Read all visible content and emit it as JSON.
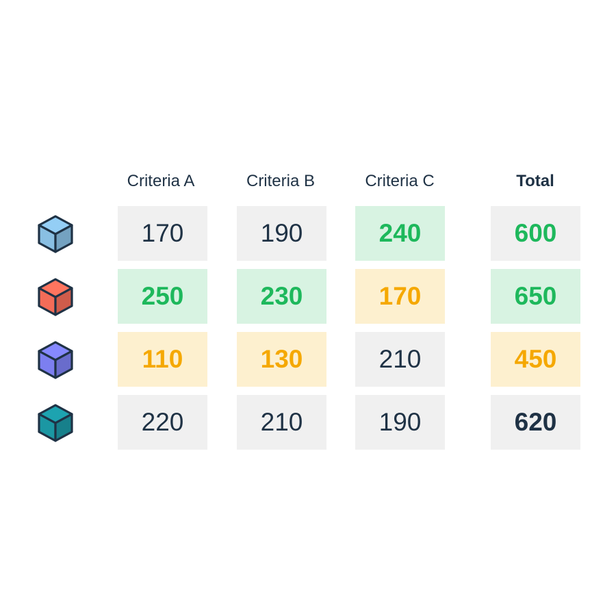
{
  "columns": [
    "Criteria A",
    "Criteria B",
    "Criteria C",
    "Total"
  ],
  "rows": [
    {
      "icon": "light-blue-cube-icon",
      "color": "#89bfe3",
      "cells": [
        {
          "value": "170",
          "status": "neutral"
        },
        {
          "value": "190",
          "status": "neutral"
        },
        {
          "value": "240",
          "status": "good"
        }
      ],
      "total": {
        "value": "600",
        "status": "good-plain"
      }
    },
    {
      "icon": "red-cube-icon",
      "color": "#f36c58",
      "cells": [
        {
          "value": "250",
          "status": "good"
        },
        {
          "value": "230",
          "status": "good"
        },
        {
          "value": "170",
          "status": "warn"
        }
      ],
      "total": {
        "value": "650",
        "status": "good"
      }
    },
    {
      "icon": "purple-cube-icon",
      "color": "#7c7ff0",
      "cells": [
        {
          "value": "110",
          "status": "warn"
        },
        {
          "value": "130",
          "status": "warn"
        },
        {
          "value": "210",
          "status": "neutral"
        }
      ],
      "total": {
        "value": "450",
        "status": "warn"
      }
    },
    {
      "icon": "teal-cube-icon",
      "color": "#1b97a3",
      "cells": [
        {
          "value": "220",
          "status": "neutral"
        },
        {
          "value": "210",
          "status": "neutral"
        },
        {
          "value": "190",
          "status": "neutral"
        }
      ],
      "total": {
        "value": "620",
        "status": "neutral"
      }
    }
  ],
  "colors": {
    "text": "#1f3245",
    "neutral_bg": "#f0f0f0",
    "good_bg": "#d8f3e2",
    "good_text": "#1eb85c",
    "warn_bg": "#fdf0cf",
    "warn_text": "#f5a800"
  }
}
